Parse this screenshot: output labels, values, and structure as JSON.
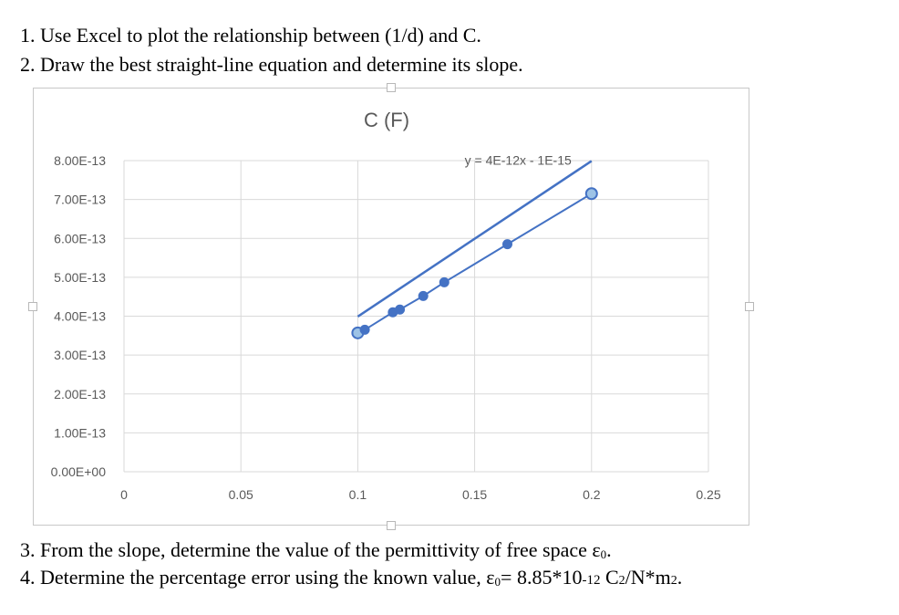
{
  "instructions": {
    "line1": "1. Use Excel to plot the relationship between (1/d) and C.",
    "line2": "2. Draw the best straight-line equation and determine its slope.",
    "line3_text": "3. From the slope, determine the value of the permittivity of free space ε",
    "line3_sub": "0",
    "line3_end": ".",
    "line4_text": "4. Determine the percentage error using the known value, ε",
    "line4_sub": "0",
    "line4_value": "= 8.85*10",
    "line4_exp": "-12",
    "line4_units_a": " C",
    "line4_units_b": "2",
    "line4_units_c": "/N*m",
    "line4_units_d": "2",
    "line4_units_e": "."
  },
  "chart_data": {
    "type": "scatter",
    "title": "C (F)",
    "xlabel": "",
    "ylabel": "",
    "xlim": [
      0,
      0.25
    ],
    "ylim": [
      0,
      8e-13
    ],
    "x_ticks": [
      "0",
      "0.05",
      "0.1",
      "0.15",
      "0.2",
      "0.25"
    ],
    "y_ticks": [
      "0.00E+00",
      "1.00E-13",
      "2.00E-13",
      "3.00E-13",
      "4.00E-13",
      "5.00E-13",
      "6.00E-13",
      "7.00E-13",
      "8.00E-13"
    ],
    "grid": true,
    "series": [
      {
        "points": [
          {
            "x": 0.1,
            "y": 3.57e-13
          },
          {
            "x": 0.103,
            "y": 3.65e-13
          },
          {
            "x": 0.115,
            "y": 4.1e-13
          },
          {
            "x": 0.118,
            "y": 4.17e-13
          },
          {
            "x": 0.128,
            "y": 4.52e-13
          },
          {
            "x": 0.137,
            "y": 4.87e-13
          },
          {
            "x": 0.164,
            "y": 5.85e-13
          },
          {
            "x": 0.2,
            "y": 7.15e-13
          }
        ],
        "color": "#4472c4",
        "highlight_color": "#9dc3e6"
      }
    ],
    "trendline": {
      "equation": "y = 4E-12x - 1E-15",
      "slope": 4e-12,
      "intercept": -1e-15,
      "x_range": [
        0.1,
        0.2
      ],
      "color": "#4472c4"
    }
  }
}
